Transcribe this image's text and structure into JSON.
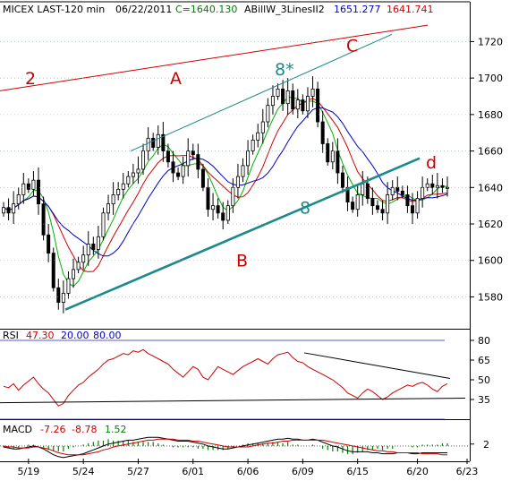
{
  "header": {
    "symbol": "MICEX LAST-120 min",
    "date": "06/22/2011",
    "close_text": "C=1640.130",
    "indicator": "ABillW_3LinesII2",
    "ind_val1": "1651.277",
    "ind_val2": "1641.741"
  },
  "colors": {
    "price": "#000000",
    "green": "#00b000",
    "red": "#d00000",
    "blue": "#0000c0",
    "teal": "#1a8a8a",
    "rsi": "#cc0000",
    "macd": "#000000",
    "signal": "#cc0000",
    "hist": "#008000",
    "text_green": "#008000",
    "text_red": "#cc0000",
    "text_blue": "#0000cc"
  },
  "chart_data": [
    {
      "type": "candlestick",
      "ylim": [
        1565,
        1732
      ],
      "y_ticks": [
        1580,
        1600,
        1620,
        1640,
        1660,
        1680,
        1700,
        1720
      ],
      "x_tick_labels": [
        "5/19",
        "5/24",
        "5/27",
        "6/01",
        "6/06",
        "6/09",
        "6/15",
        "6/20",
        "6/23"
      ],
      "x_tick_index": [
        5,
        16,
        27,
        38,
        49,
        60,
        71,
        83,
        94
      ],
      "num_bars": 90,
      "close": [
        1629,
        1626,
        1631,
        1636,
        1642,
        1639,
        1644,
        1631,
        1614,
        1604,
        1585,
        1577,
        1582,
        1590,
        1595,
        1599,
        1603,
        1609,
        1606,
        1613,
        1626,
        1631,
        1636,
        1639,
        1642,
        1646,
        1648,
        1650,
        1660,
        1667,
        1662,
        1669,
        1660,
        1654,
        1648,
        1646,
        1652,
        1660,
        1658,
        1650,
        1640,
        1628,
        1630,
        1626,
        1622,
        1630,
        1640,
        1646,
        1652,
        1660,
        1666,
        1670,
        1676,
        1685,
        1690,
        1694,
        1686,
        1693,
        1683,
        1688,
        1682,
        1690,
        1694,
        1676,
        1664,
        1654,
        1660,
        1648,
        1640,
        1632,
        1628,
        1636,
        1642,
        1634,
        1630,
        1628,
        1626,
        1636,
        1640,
        1638,
        1636,
        1630,
        1626,
        1634,
        1640,
        1642,
        1640,
        1641,
        1640,
        1640
      ],
      "labels": [
        {
          "text": "2",
          "price": 1700
        },
        {
          "text": "A",
          "price": 1700
        },
        {
          "text": "B",
          "price": 1600
        },
        {
          "text": "C",
          "price": 1718
        },
        {
          "text": "d",
          "price": 1654
        },
        {
          "text": "8",
          "price": 1629
        },
        {
          "text": "8*",
          "price": 1705
        }
      ]
    },
    {
      "type": "line",
      "title": "RSI",
      "values_shown": [
        "47.30",
        "20.00",
        "80.00"
      ],
      "ylim": [
        20,
        80
      ],
      "y_ticks": [
        35,
        50,
        65,
        80
      ],
      "levels": [
        20,
        80
      ],
      "rsi": [
        45,
        44,
        47,
        42,
        46,
        49,
        52,
        47,
        43,
        40,
        35,
        30,
        32,
        38,
        42,
        46,
        48,
        52,
        55,
        58,
        62,
        65,
        66,
        68,
        70,
        69,
        72,
        71,
        73,
        70,
        68,
        66,
        64,
        62,
        58,
        55,
        52,
        56,
        60,
        58,
        52,
        50,
        55,
        60,
        58,
        56,
        54,
        57,
        60,
        62,
        64,
        66,
        64,
        62,
        66,
        69,
        70,
        71,
        67,
        64,
        63,
        60,
        58,
        56,
        54,
        52,
        50,
        47,
        44,
        40,
        38,
        36,
        40,
        43,
        41,
        38,
        35,
        37,
        40,
        42,
        44,
        46,
        45,
        47,
        48,
        46,
        43,
        41,
        45,
        47
      ]
    },
    {
      "type": "line",
      "title": "MACD",
      "values_shown": [
        "-7.26",
        "-8.78",
        "1.52"
      ],
      "y_ticks": [
        2
      ],
      "macd": [
        -1,
        -2,
        -3,
        -3,
        -2,
        -1,
        0,
        -1,
        -3,
        -6,
        -9,
        -11,
        -12,
        -11,
        -10,
        -9,
        -8,
        -6,
        -4,
        -2,
        0,
        2,
        3,
        4,
        5,
        6,
        6,
        7,
        8,
        9,
        9,
        9,
        8,
        7,
        6,
        5,
        5,
        5,
        4,
        3,
        2,
        0,
        -1,
        -2,
        -3,
        -3,
        -2,
        -1,
        0,
        1,
        2,
        3,
        4,
        5,
        6,
        7,
        7,
        8,
        7,
        7,
        6,
        6,
        7,
        6,
        4,
        2,
        0,
        -1,
        -3,
        -5,
        -6,
        -6,
        -6,
        -6,
        -7,
        -7,
        -8,
        -8,
        -8,
        -7,
        -7,
        -7,
        -8,
        -8,
        -7,
        -7,
        -7,
        -7,
        -7,
        -7
      ],
      "signal": [
        0,
        -1,
        -1,
        -2,
        -2,
        -2,
        -1,
        -1,
        -2,
        -3,
        -5,
        -7,
        -8,
        -9,
        -9,
        -9,
        -9,
        -8,
        -7,
        -6,
        -4,
        -3,
        -1,
        0,
        1,
        2,
        3,
        4,
        5,
        6,
        6,
        7,
        7,
        7,
        7,
        6,
        6,
        6,
        5,
        5,
        4,
        3,
        2,
        1,
        0,
        -1,
        -1,
        -1,
        -1,
        -1,
        0,
        1,
        2,
        3,
        3,
        4,
        5,
        5,
        6,
        6,
        6,
        6,
        6,
        6,
        6,
        5,
        4,
        3,
        2,
        1,
        0,
        -1,
        -2,
        -3,
        -4,
        -5,
        -5,
        -6,
        -6,
        -7,
        -7,
        -7,
        -7,
        -7,
        -8,
        -8,
        -8,
        -8,
        -9,
        -9
      ]
    }
  ]
}
